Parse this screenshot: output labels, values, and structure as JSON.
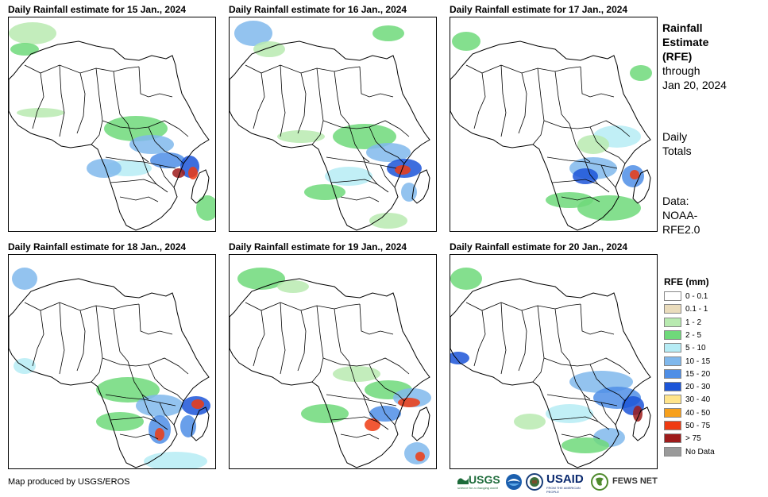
{
  "panels": [
    {
      "title": "Daily Rainfall estimate for 15 Jan., 2024",
      "day": 15
    },
    {
      "title": "Daily Rainfall estimate for 16 Jan., 2024",
      "day": 16
    },
    {
      "title": "Daily Rainfall estimate for 17 Jan., 2024",
      "day": 17
    },
    {
      "title": "Daily Rainfall estimate for 18 Jan., 2024",
      "day": 18
    },
    {
      "title": "Daily Rainfall estimate for 19 Jan., 2024",
      "day": 19
    },
    {
      "title": "Daily Rainfall estimate for 20 Jan., 2024",
      "day": 20
    }
  ],
  "sidebar": {
    "title_line1": "Rainfall",
    "title_line2": "Estimate",
    "title_line3": "(RFE)",
    "through_label": "through",
    "through_date": "Jan 20, 2024",
    "totals_line1": "Daily",
    "totals_line2": "Totals",
    "data_line1": "Data:",
    "data_line2": "NOAA-",
    "data_line3": "RFE2.0"
  },
  "legend": {
    "title": "RFE (mm)",
    "items": [
      {
        "label": "0 - 0.1",
        "color": "#ffffff"
      },
      {
        "label": "0.1 - 1",
        "color": "#eadcbc"
      },
      {
        "label": "1 - 2",
        "color": "#b8eab0"
      },
      {
        "label": "2 - 5",
        "color": "#6fd97a"
      },
      {
        "label": "5 - 10",
        "color": "#b6ecf5"
      },
      {
        "label": "10 - 15",
        "color": "#80b8ec"
      },
      {
        "label": "15 - 20",
        "color": "#4f8ee6"
      },
      {
        "label": "20 - 30",
        "color": "#1c55d8"
      },
      {
        "label": "30 - 40",
        "color": "#ffe48a"
      },
      {
        "label": "40 - 50",
        "color": "#f7a01c"
      },
      {
        "label": "50 - 75",
        "color": "#ef3b12"
      },
      {
        "label": "> 75",
        "color": "#9e1b1b"
      },
      {
        "label": "No Data",
        "color": "#9a9a9a"
      }
    ]
  },
  "credit": "Map produced by USGS/EROS",
  "logos": {
    "usgs": "USGS",
    "usgs_tagline": "science for a changing world",
    "usaid": "USAID",
    "usaid_tagline": "FROM THE AMERICAN PEOPLE",
    "fews": "FEWS NET"
  }
}
